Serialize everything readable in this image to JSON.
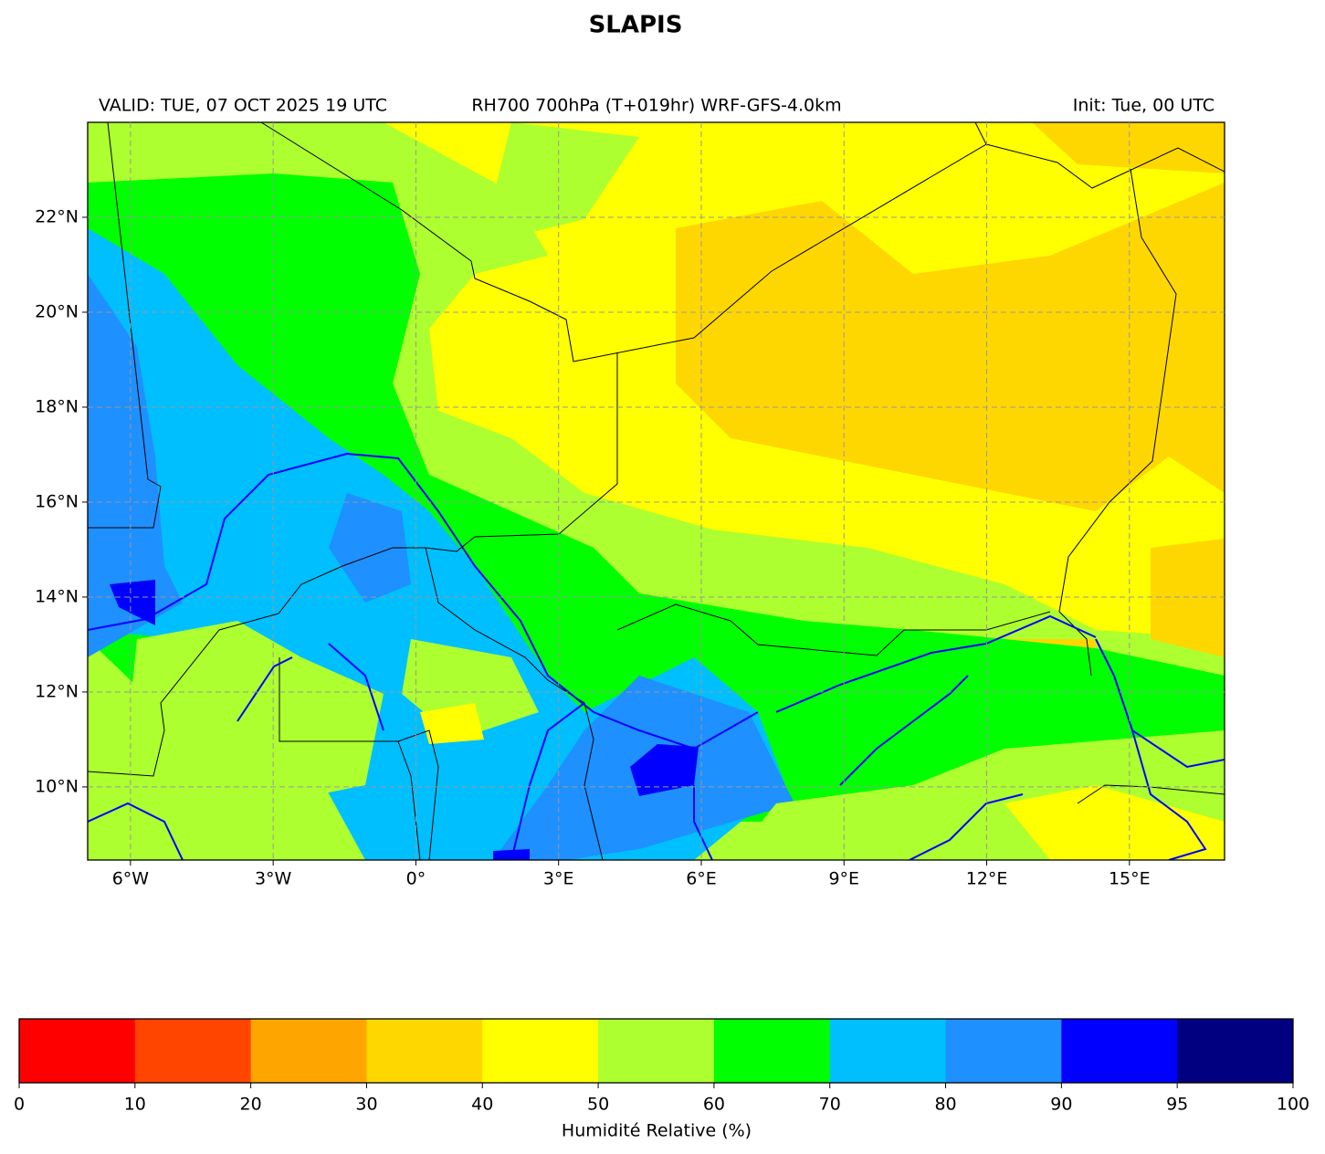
{
  "title": "SLAPIS",
  "header": {
    "valid": "VALID: TUE, 07 OCT 2025 19 UTC",
    "field": "RH700 700hPa (T+019hr) WRF-GFS-4.0km",
    "init": "Init: Tue, 00 UTC"
  },
  "map": {
    "lonlim": [
      -6.9,
      17
    ],
    "latlim": [
      8.46,
      24
    ],
    "lon_ticks": [
      {
        "value": -6,
        "label": "6°W"
      },
      {
        "value": -3,
        "label": "3°W"
      },
      {
        "value": 0,
        "label": "0°"
      },
      {
        "value": 3,
        "label": "3°E"
      },
      {
        "value": 6,
        "label": "6°E"
      },
      {
        "value": 9,
        "label": "9°E"
      },
      {
        "value": 12,
        "label": "12°E"
      },
      {
        "value": 15,
        "label": "15°E"
      }
    ],
    "lat_ticks": [
      {
        "value": 10,
        "label": "10°N"
      },
      {
        "value": 12,
        "label": "12°N"
      },
      {
        "value": 14,
        "label": "14°N"
      },
      {
        "value": 16,
        "label": "16°N"
      },
      {
        "value": 18,
        "label": "18°N"
      },
      {
        "value": 20,
        "label": "20°N"
      },
      {
        "value": 22,
        "label": "22°N"
      }
    ],
    "grid": true
  },
  "colorbar": {
    "label": "Humidité Relative (%)",
    "bounds": [
      0,
      10,
      20,
      30,
      40,
      50,
      60,
      70,
      80,
      90,
      95,
      100
    ],
    "colors": [
      "#ff0000",
      "#ff4500",
      "#ffa500",
      "#ffd700",
      "#ffff00",
      "#adff2f",
      "#00ff00",
      "#00bfff",
      "#1e90ff",
      "#0000ff",
      "#000080"
    ]
  }
}
